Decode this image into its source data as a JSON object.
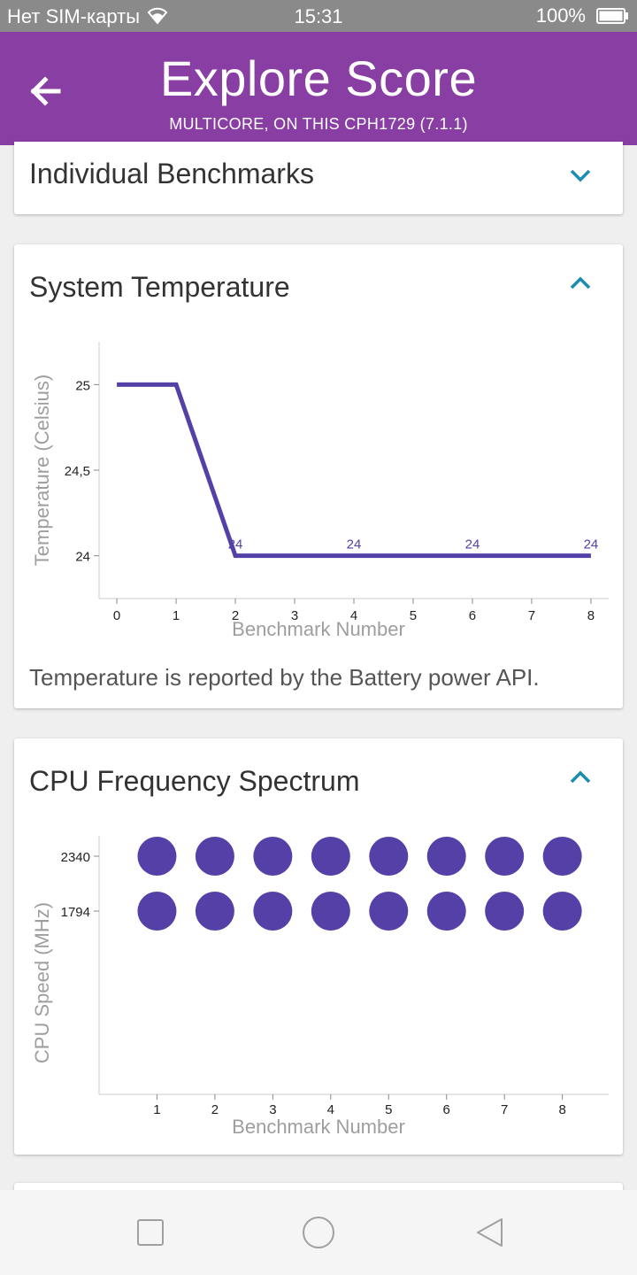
{
  "status_bar": {
    "carrier": "Нет SIM-карты",
    "time": "15:31",
    "battery": "100%"
  },
  "app_bar": {
    "title": "Explore Score",
    "subtitle": "MULTICORE, ON THIS CPH1729 (7.1.1)",
    "color": "#883ea3"
  },
  "sections": {
    "benchmarks": {
      "title": "Individual Benchmarks",
      "expanded": false
    },
    "temperature": {
      "title": "System Temperature",
      "expanded": true,
      "note": "Temperature is reported by the Battery power API."
    },
    "cpu": {
      "title": "CPU Frequency Spectrum",
      "expanded": true
    }
  },
  "accent_color": "#1b8cb0",
  "series_color": "#5540a8",
  "chart_data": [
    {
      "type": "line",
      "xlabel": "Benchmark Number",
      "ylabel": "Temperature (Celsius)",
      "x": [
        0,
        1,
        2,
        3,
        4,
        5,
        6,
        7,
        8
      ],
      "y": [
        25,
        25,
        24,
        24,
        24,
        24,
        24,
        24,
        24
      ],
      "xlim": [
        -0.3,
        8.3
      ],
      "ylim": [
        23.75,
        25.25
      ],
      "xticks": [
        "0",
        "1",
        "2",
        "3",
        "4",
        "5",
        "6",
        "7",
        "8"
      ],
      "yticks": [
        {
          "value": 25,
          "label": "25"
        },
        {
          "value": 24.5,
          "label": "24,5"
        },
        {
          "value": 24,
          "label": "24"
        }
      ],
      "data_labels": [
        {
          "x": 2,
          "y": 24,
          "text": "24"
        },
        {
          "x": 4,
          "y": 24,
          "text": "24"
        },
        {
          "x": 6,
          "y": 24,
          "text": "24"
        },
        {
          "x": 8,
          "y": 24,
          "text": "24"
        }
      ],
      "grid": false
    },
    {
      "type": "scatter",
      "xlabel": "Benchmark Number",
      "ylabel": "CPU Speed (MHz)",
      "xticks": [
        "1",
        "2",
        "3",
        "4",
        "5",
        "6",
        "7",
        "8"
      ],
      "xlim": [
        0,
        8.8
      ],
      "yticks": [
        {
          "value": 2340,
          "label": "2340"
        },
        {
          "value": 1794,
          "label": "1794"
        }
      ],
      "points": [
        {
          "x": 1,
          "y": 2340
        },
        {
          "x": 2,
          "y": 2340
        },
        {
          "x": 3,
          "y": 2340
        },
        {
          "x": 4,
          "y": 2340
        },
        {
          "x": 5,
          "y": 2340
        },
        {
          "x": 6,
          "y": 2340
        },
        {
          "x": 7,
          "y": 2340
        },
        {
          "x": 8,
          "y": 2340
        },
        {
          "x": 1,
          "y": 1794
        },
        {
          "x": 2,
          "y": 1794
        },
        {
          "x": 3,
          "y": 1794
        },
        {
          "x": 4,
          "y": 1794
        },
        {
          "x": 5,
          "y": 1794
        },
        {
          "x": 6,
          "y": 1794
        },
        {
          "x": 7,
          "y": 1794
        },
        {
          "x": 8,
          "y": 1794
        }
      ],
      "grid": false
    }
  ]
}
